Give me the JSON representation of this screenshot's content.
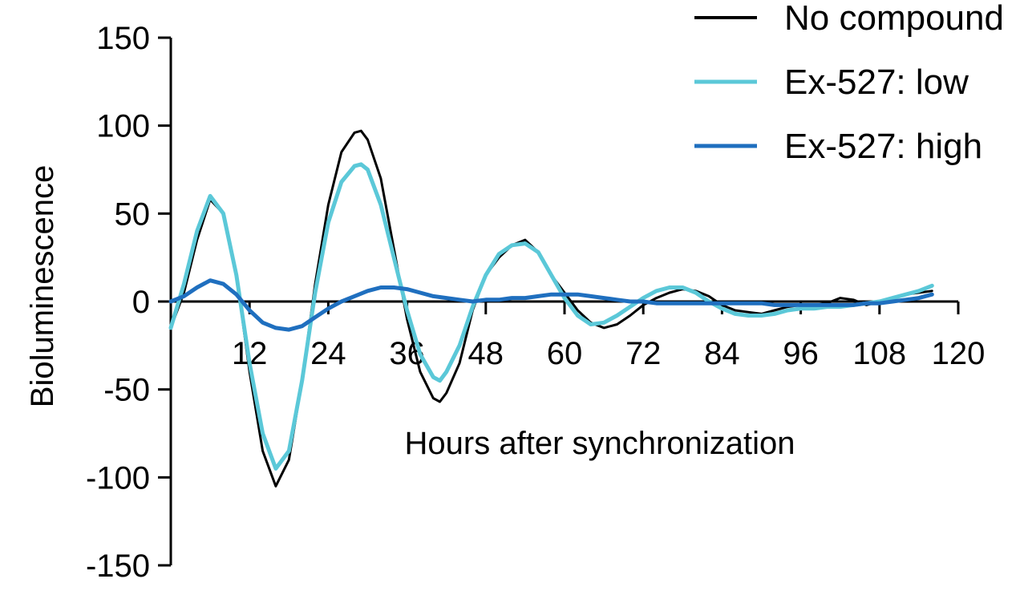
{
  "chart_data": {
    "type": "line",
    "title": "",
    "xlabel": "Hours after synchronization",
    "ylabel": "Bioluminescence",
    "xlim": [
      0,
      120
    ],
    "ylim": [
      -150,
      150
    ],
    "x_ticks": [
      12,
      24,
      36,
      48,
      60,
      72,
      84,
      96,
      108,
      120
    ],
    "y_ticks": [
      150,
      100,
      50,
      0,
      -50,
      -100,
      -150
    ],
    "grid": false,
    "legend_position": "top-right",
    "series": [
      {
        "name": "No compound",
        "color": "#000000",
        "x": [
          0,
          2,
          4,
          6,
          8,
          10,
          12,
          14,
          16,
          18,
          20,
          22,
          24,
          26,
          28,
          29,
          30,
          32,
          34,
          36,
          38,
          40,
          41,
          42,
          44,
          46,
          48,
          50,
          52,
          54,
          56,
          58,
          60,
          62,
          64,
          66,
          68,
          70,
          72,
          74,
          76,
          78,
          80,
          82,
          84,
          86,
          88,
          90,
          92,
          94,
          96,
          98,
          100,
          102,
          104,
          106,
          108,
          110,
          112,
          114,
          116
        ],
        "values": [
          -15,
          5,
          35,
          58,
          50,
          15,
          -40,
          -85,
          -105,
          -90,
          -45,
          10,
          55,
          85,
          96,
          97,
          92,
          70,
          30,
          -10,
          -40,
          -55,
          -57,
          -52,
          -35,
          -5,
          15,
          25,
          32,
          35,
          28,
          15,
          5,
          -5,
          -12,
          -15,
          -13,
          -8,
          -2,
          2,
          5,
          7,
          6,
          3,
          -2,
          -5,
          -6,
          -7,
          -5,
          -3,
          -2,
          -2,
          -1,
          2,
          1,
          -2,
          0,
          2,
          4,
          5,
          6
        ]
      },
      {
        "name": "Ex-527: low",
        "color": "#5BC8D8",
        "x": [
          0,
          2,
          4,
          6,
          8,
          10,
          12,
          14,
          16,
          18,
          20,
          22,
          24,
          26,
          28,
          29,
          30,
          32,
          34,
          36,
          38,
          40,
          41,
          42,
          44,
          46,
          48,
          50,
          52,
          54,
          56,
          58,
          60,
          62,
          64,
          66,
          68,
          70,
          72,
          74,
          76,
          78,
          80,
          82,
          84,
          86,
          88,
          90,
          92,
          94,
          96,
          98,
          100,
          102,
          104,
          106,
          108,
          110,
          112,
          114,
          116
        ],
        "values": [
          -15,
          10,
          40,
          60,
          50,
          15,
          -35,
          -75,
          -95,
          -85,
          -45,
          5,
          45,
          68,
          77,
          78,
          75,
          55,
          25,
          -5,
          -30,
          -43,
          -45,
          -40,
          -25,
          -3,
          15,
          27,
          32,
          33,
          28,
          15,
          2,
          -8,
          -13,
          -12,
          -8,
          -3,
          2,
          6,
          8,
          8,
          5,
          0,
          -4,
          -7,
          -8,
          -8,
          -7,
          -5,
          -4,
          -4,
          -3,
          -3,
          -2,
          -1,
          0,
          2,
          4,
          6,
          9
        ]
      },
      {
        "name": "Ex-527: high",
        "color": "#1F6FBF",
        "x": [
          0,
          2,
          4,
          6,
          8,
          10,
          12,
          14,
          16,
          18,
          20,
          22,
          24,
          26,
          28,
          30,
          32,
          34,
          36,
          38,
          40,
          42,
          44,
          46,
          48,
          50,
          52,
          54,
          56,
          58,
          60,
          62,
          64,
          66,
          68,
          70,
          72,
          74,
          76,
          78,
          80,
          82,
          84,
          86,
          88,
          90,
          92,
          94,
          96,
          98,
          100,
          102,
          104,
          106,
          108,
          110,
          112,
          114,
          116
        ],
        "values": [
          0,
          3,
          8,
          12,
          10,
          4,
          -5,
          -12,
          -15,
          -16,
          -14,
          -9,
          -4,
          0,
          3,
          6,
          8,
          8,
          7,
          5,
          3,
          2,
          1,
          0,
          1,
          1,
          2,
          2,
          3,
          4,
          4,
          4,
          3,
          2,
          1,
          0,
          0,
          -1,
          -1,
          -1,
          -1,
          -1,
          -1,
          -1,
          -1,
          -1,
          -2,
          -2,
          -2,
          -2,
          -2,
          -2,
          -2,
          -1,
          -1,
          0,
          1,
          2,
          4
        ]
      }
    ]
  }
}
